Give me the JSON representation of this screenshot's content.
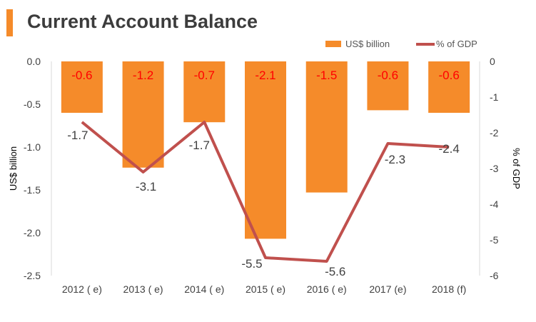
{
  "title": "Current Account Balance",
  "colors": {
    "accent": "#f58b2a",
    "bar": "#f58b2a",
    "line": "#c0504d",
    "bar_label": "#ff0000",
    "line_label": "#404040"
  },
  "chart_data": {
    "type": "bar",
    "categories": [
      "2012 ( e)",
      "2013 ( e)",
      "2014 ( e)",
      "2015 ( e)",
      "2016 ( e)",
      "2017 (e)",
      "2018 (f)"
    ],
    "series": [
      {
        "name": "US$ billion",
        "type": "bar",
        "axis": "left",
        "values": [
          -0.6,
          -1.2,
          -0.7,
          -2.1,
          -1.5,
          -0.6,
          -0.6
        ]
      },
      {
        "name": "% of GDP",
        "type": "line",
        "axis": "right",
        "values": [
          -1.7,
          -3.1,
          -1.7,
          -5.5,
          -5.6,
          -2.3,
          -2.4
        ]
      }
    ],
    "bar_heights": [
      -0.6,
      -1.24,
      -0.71,
      -2.07,
      -1.53,
      -0.57,
      -0.6
    ],
    "ylabel": "US$ billion",
    "y2label": "% of GDP",
    "ylim": [
      -2.5,
      0.0
    ],
    "y2lim": [
      -6,
      0
    ],
    "yticks": [
      "0.0",
      "-0.5",
      "-1.0",
      "-1.5",
      "-2.0",
      "-2.5"
    ],
    "y2ticks": [
      "0",
      "-1",
      "-2",
      "-3",
      "-4",
      "-5",
      "-6"
    ],
    "legend": "top-right",
    "grid": false
  }
}
